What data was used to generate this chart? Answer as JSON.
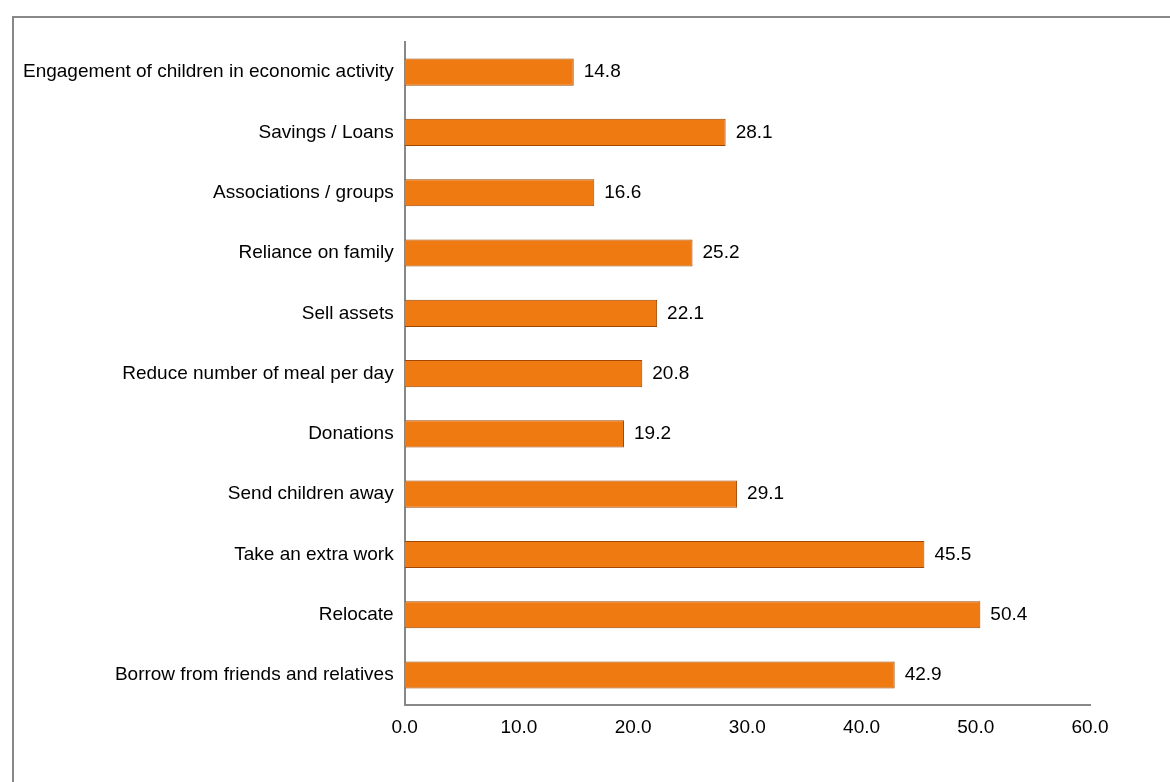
{
  "chart_data": {
    "type": "bar",
    "orientation": "horizontal",
    "categories": [
      "Engagement of children in economic activity",
      "Savings / Loans",
      "Associations / groups",
      "Reliance on family",
      "Sell assets",
      "Reduce number of meal per day",
      "Donations",
      "Send children away",
      "Take an extra work",
      "Relocate",
      "Borrow from friends and relatives"
    ],
    "values": [
      14.8,
      28.1,
      16.6,
      25.2,
      22.1,
      20.8,
      19.2,
      29.1,
      45.5,
      50.4,
      42.9
    ],
    "color": "#f07a12",
    "xlim": [
      0,
      60
    ],
    "xticks": [
      {
        "value": 0,
        "label": "0.0"
      },
      {
        "value": 10,
        "label": "10.0"
      },
      {
        "value": 20,
        "label": "20.0"
      },
      {
        "value": 30,
        "label": "30.0"
      },
      {
        "value": 40,
        "label": "40.0"
      },
      {
        "value": 50,
        "label": "50.0"
      },
      {
        "value": 60,
        "label": "60.0"
      }
    ],
    "data_labels": true,
    "grid": false,
    "legend": false
  }
}
